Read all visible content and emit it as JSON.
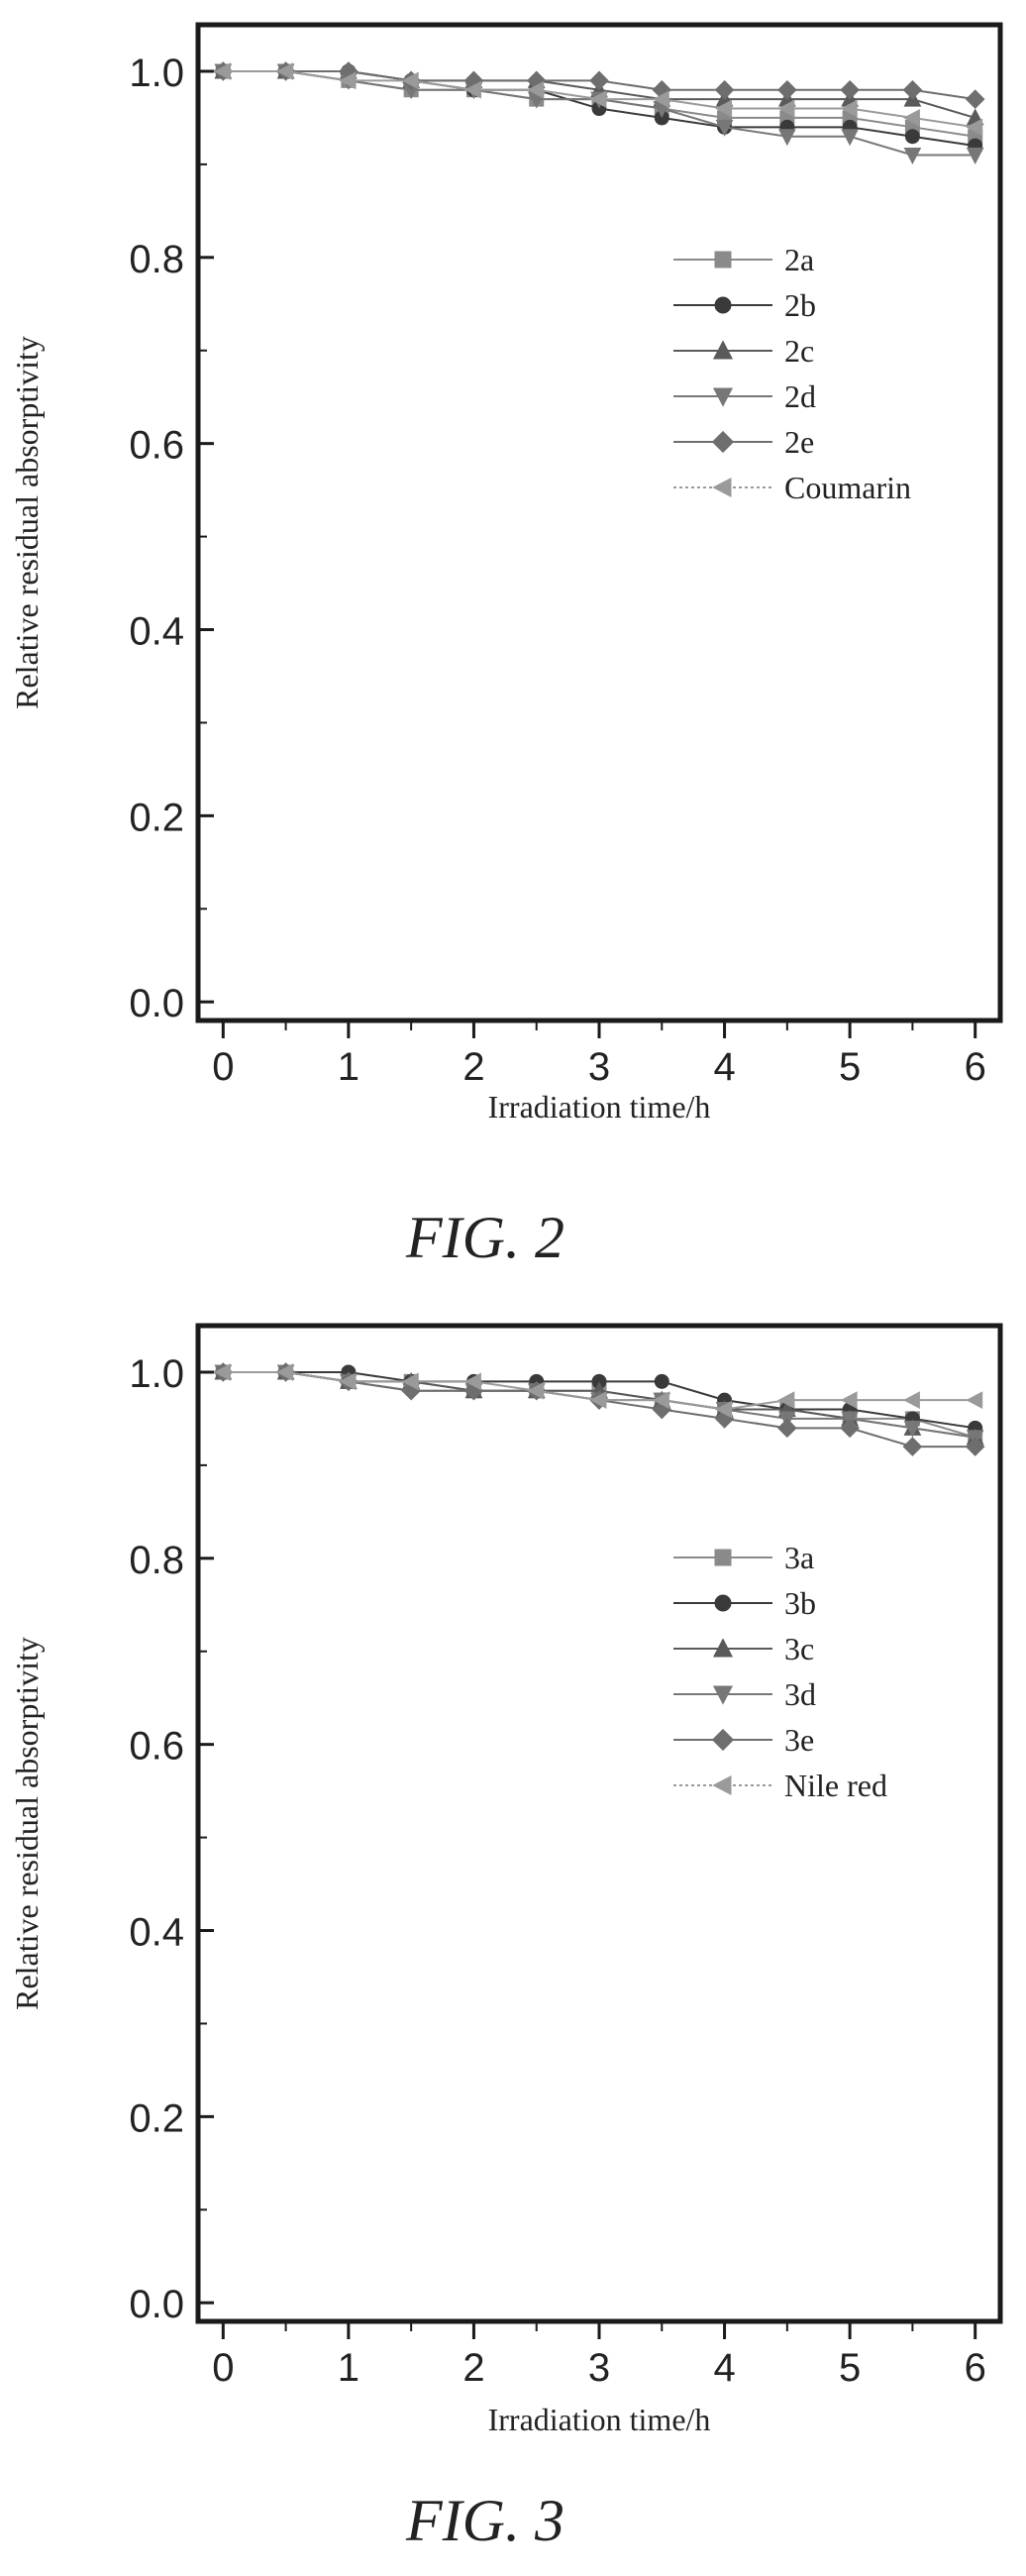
{
  "figures": [
    {
      "caption": "FIG. 2",
      "chart_data": {
        "type": "line",
        "xlabel": "Irradiation time/h",
        "ylabel": "Relative residual absorptivity",
        "xlim": [
          -0.2,
          6.2
        ],
        "ylim": [
          -0.02,
          1.05
        ],
        "xticks": [
          0,
          1,
          2,
          3,
          4,
          5,
          6
        ],
        "xtick_labels": [
          "0",
          "1",
          "2",
          "3",
          "4",
          "5",
          "6"
        ],
        "yticks": [
          0.0,
          0.2,
          0.4,
          0.6,
          0.8,
          1.0
        ],
        "ytick_labels": [
          "0.0",
          "0.2",
          "0.4",
          "0.6",
          "0.8",
          "1.0"
        ],
        "legend_position": "right",
        "x": [
          0,
          0.5,
          1,
          1.5,
          2,
          2.5,
          3,
          3.5,
          4,
          4.5,
          5,
          5.5,
          6
        ],
        "series": [
          {
            "name": "2a",
            "marker": "square",
            "color": "#8a8a8a",
            "values": [
              1.0,
              1.0,
              0.99,
              0.98,
              0.98,
              0.97,
              0.97,
              0.96,
              0.95,
              0.95,
              0.95,
              0.94,
              0.93
            ]
          },
          {
            "name": "2b",
            "marker": "circle",
            "color": "#3a3a3a",
            "values": [
              1.0,
              1.0,
              1.0,
              0.99,
              0.98,
              0.98,
              0.96,
              0.95,
              0.94,
              0.94,
              0.94,
              0.93,
              0.92
            ]
          },
          {
            "name": "2c",
            "marker": "triangle-up",
            "color": "#5a5a5a",
            "values": [
              1.0,
              1.0,
              1.0,
              0.99,
              0.99,
              0.99,
              0.98,
              0.97,
              0.97,
              0.97,
              0.97,
              0.97,
              0.95
            ]
          },
          {
            "name": "2d",
            "marker": "triangle-down",
            "color": "#777777",
            "values": [
              1.0,
              1.0,
              0.99,
              0.98,
              0.98,
              0.97,
              0.97,
              0.96,
              0.94,
              0.93,
              0.93,
              0.91,
              0.91
            ]
          },
          {
            "name": "2e",
            "marker": "diamond",
            "color": "#6e6e6e",
            "values": [
              1.0,
              1.0,
              1.0,
              0.99,
              0.99,
              0.99,
              0.99,
              0.98,
              0.98,
              0.98,
              0.98,
              0.98,
              0.97
            ]
          },
          {
            "name": "Coumarin",
            "marker": "triangle-left",
            "color": "#9a9a9a",
            "values": [
              1.0,
              1.0,
              0.99,
              0.99,
              0.98,
              0.98,
              0.97,
              0.97,
              0.96,
              0.96,
              0.96,
              0.95,
              0.94
            ]
          }
        ]
      }
    },
    {
      "caption": "FIG. 3",
      "chart_data": {
        "type": "line",
        "xlabel": "Irradiation time/h",
        "ylabel": "Relative residual absorptivity",
        "xlim": [
          -0.2,
          6.2
        ],
        "ylim": [
          -0.02,
          1.05
        ],
        "xticks": [
          0,
          1,
          2,
          3,
          4,
          5,
          6
        ],
        "xtick_labels": [
          "0",
          "1",
          "2",
          "3",
          "4",
          "5",
          "6"
        ],
        "yticks": [
          0.0,
          0.2,
          0.4,
          0.6,
          0.8,
          1.0
        ],
        "ytick_labels": [
          "0.0",
          "0.2",
          "0.4",
          "0.6",
          "0.8",
          "1.0"
        ],
        "legend_position": "right",
        "x": [
          0,
          0.5,
          1,
          1.5,
          2,
          2.5,
          3,
          3.5,
          4,
          4.5,
          5,
          5.5,
          6
        ],
        "series": [
          {
            "name": "3a",
            "marker": "square",
            "color": "#8a8a8a",
            "values": [
              1.0,
              1.0,
              0.99,
              0.99,
              0.98,
              0.98,
              0.98,
              0.97,
              0.96,
              0.96,
              0.95,
              0.95,
              0.93
            ]
          },
          {
            "name": "3b",
            "marker": "circle",
            "color": "#3a3a3a",
            "values": [
              1.0,
              1.0,
              1.0,
              0.99,
              0.99,
              0.99,
              0.99,
              0.99,
              0.97,
              0.96,
              0.96,
              0.95,
              0.94
            ]
          },
          {
            "name": "3c",
            "marker": "triangle-up",
            "color": "#5a5a5a",
            "values": [
              1.0,
              1.0,
              0.99,
              0.99,
              0.98,
              0.98,
              0.98,
              0.97,
              0.96,
              0.96,
              0.95,
              0.94,
              0.93
            ]
          },
          {
            "name": "3d",
            "marker": "triangle-down",
            "color": "#777777",
            "values": [
              1.0,
              1.0,
              0.99,
              0.98,
              0.98,
              0.98,
              0.97,
              0.97,
              0.96,
              0.95,
              0.95,
              0.94,
              0.93
            ]
          },
          {
            "name": "3e",
            "marker": "diamond",
            "color": "#6e6e6e",
            "values": [
              1.0,
              1.0,
              0.99,
              0.98,
              0.98,
              0.98,
              0.97,
              0.96,
              0.95,
              0.94,
              0.94,
              0.92,
              0.92
            ]
          },
          {
            "name": "Nile red",
            "marker": "triangle-left",
            "color": "#9a9a9a",
            "values": [
              1.0,
              1.0,
              0.99,
              0.99,
              0.99,
              0.98,
              0.97,
              0.97,
              0.96,
              0.97,
              0.97,
              0.97,
              0.97
            ]
          }
        ]
      }
    }
  ]
}
